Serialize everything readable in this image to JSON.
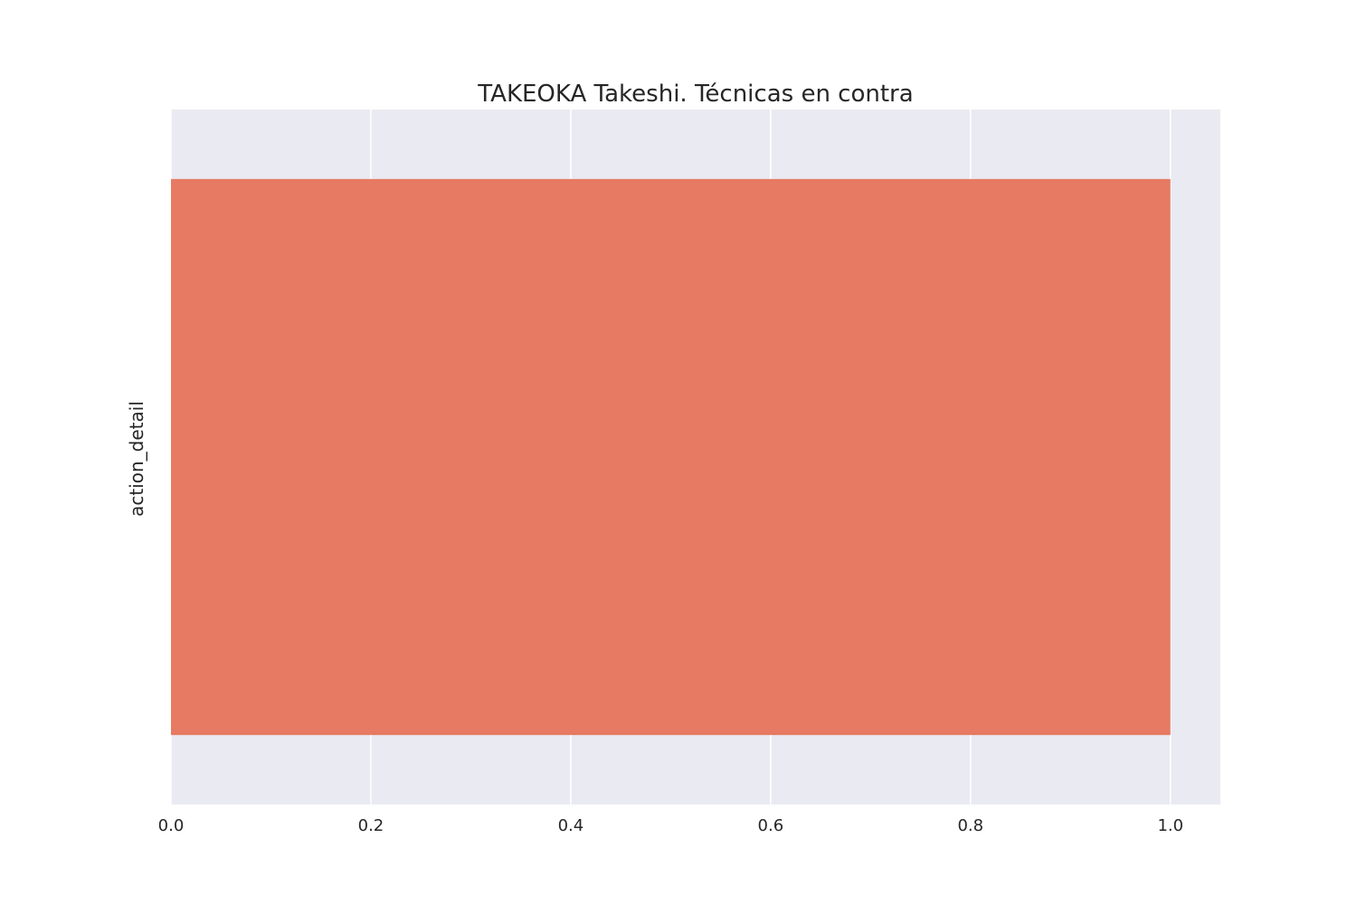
{
  "chart_data": {
    "type": "bar",
    "orientation": "horizontal",
    "title": "TAKEOKA Takeshi. Técnicas en contra",
    "xlabel": "",
    "ylabel": "action_detail",
    "categories": [
      ""
    ],
    "values": [
      1.0
    ],
    "xlim": [
      0,
      1.05
    ],
    "xticks": [
      0.0,
      0.2,
      0.4,
      0.6,
      0.8,
      1.0
    ],
    "xtick_labels": [
      "0.0",
      "0.2",
      "0.4",
      "0.6",
      "0.8",
      "1.0"
    ],
    "grid": true,
    "legend": "none",
    "colors": {
      "bar": "#e67a62",
      "plot_background": "#eaeaf2",
      "grid": "#ffffff",
      "text": "#262626"
    }
  }
}
